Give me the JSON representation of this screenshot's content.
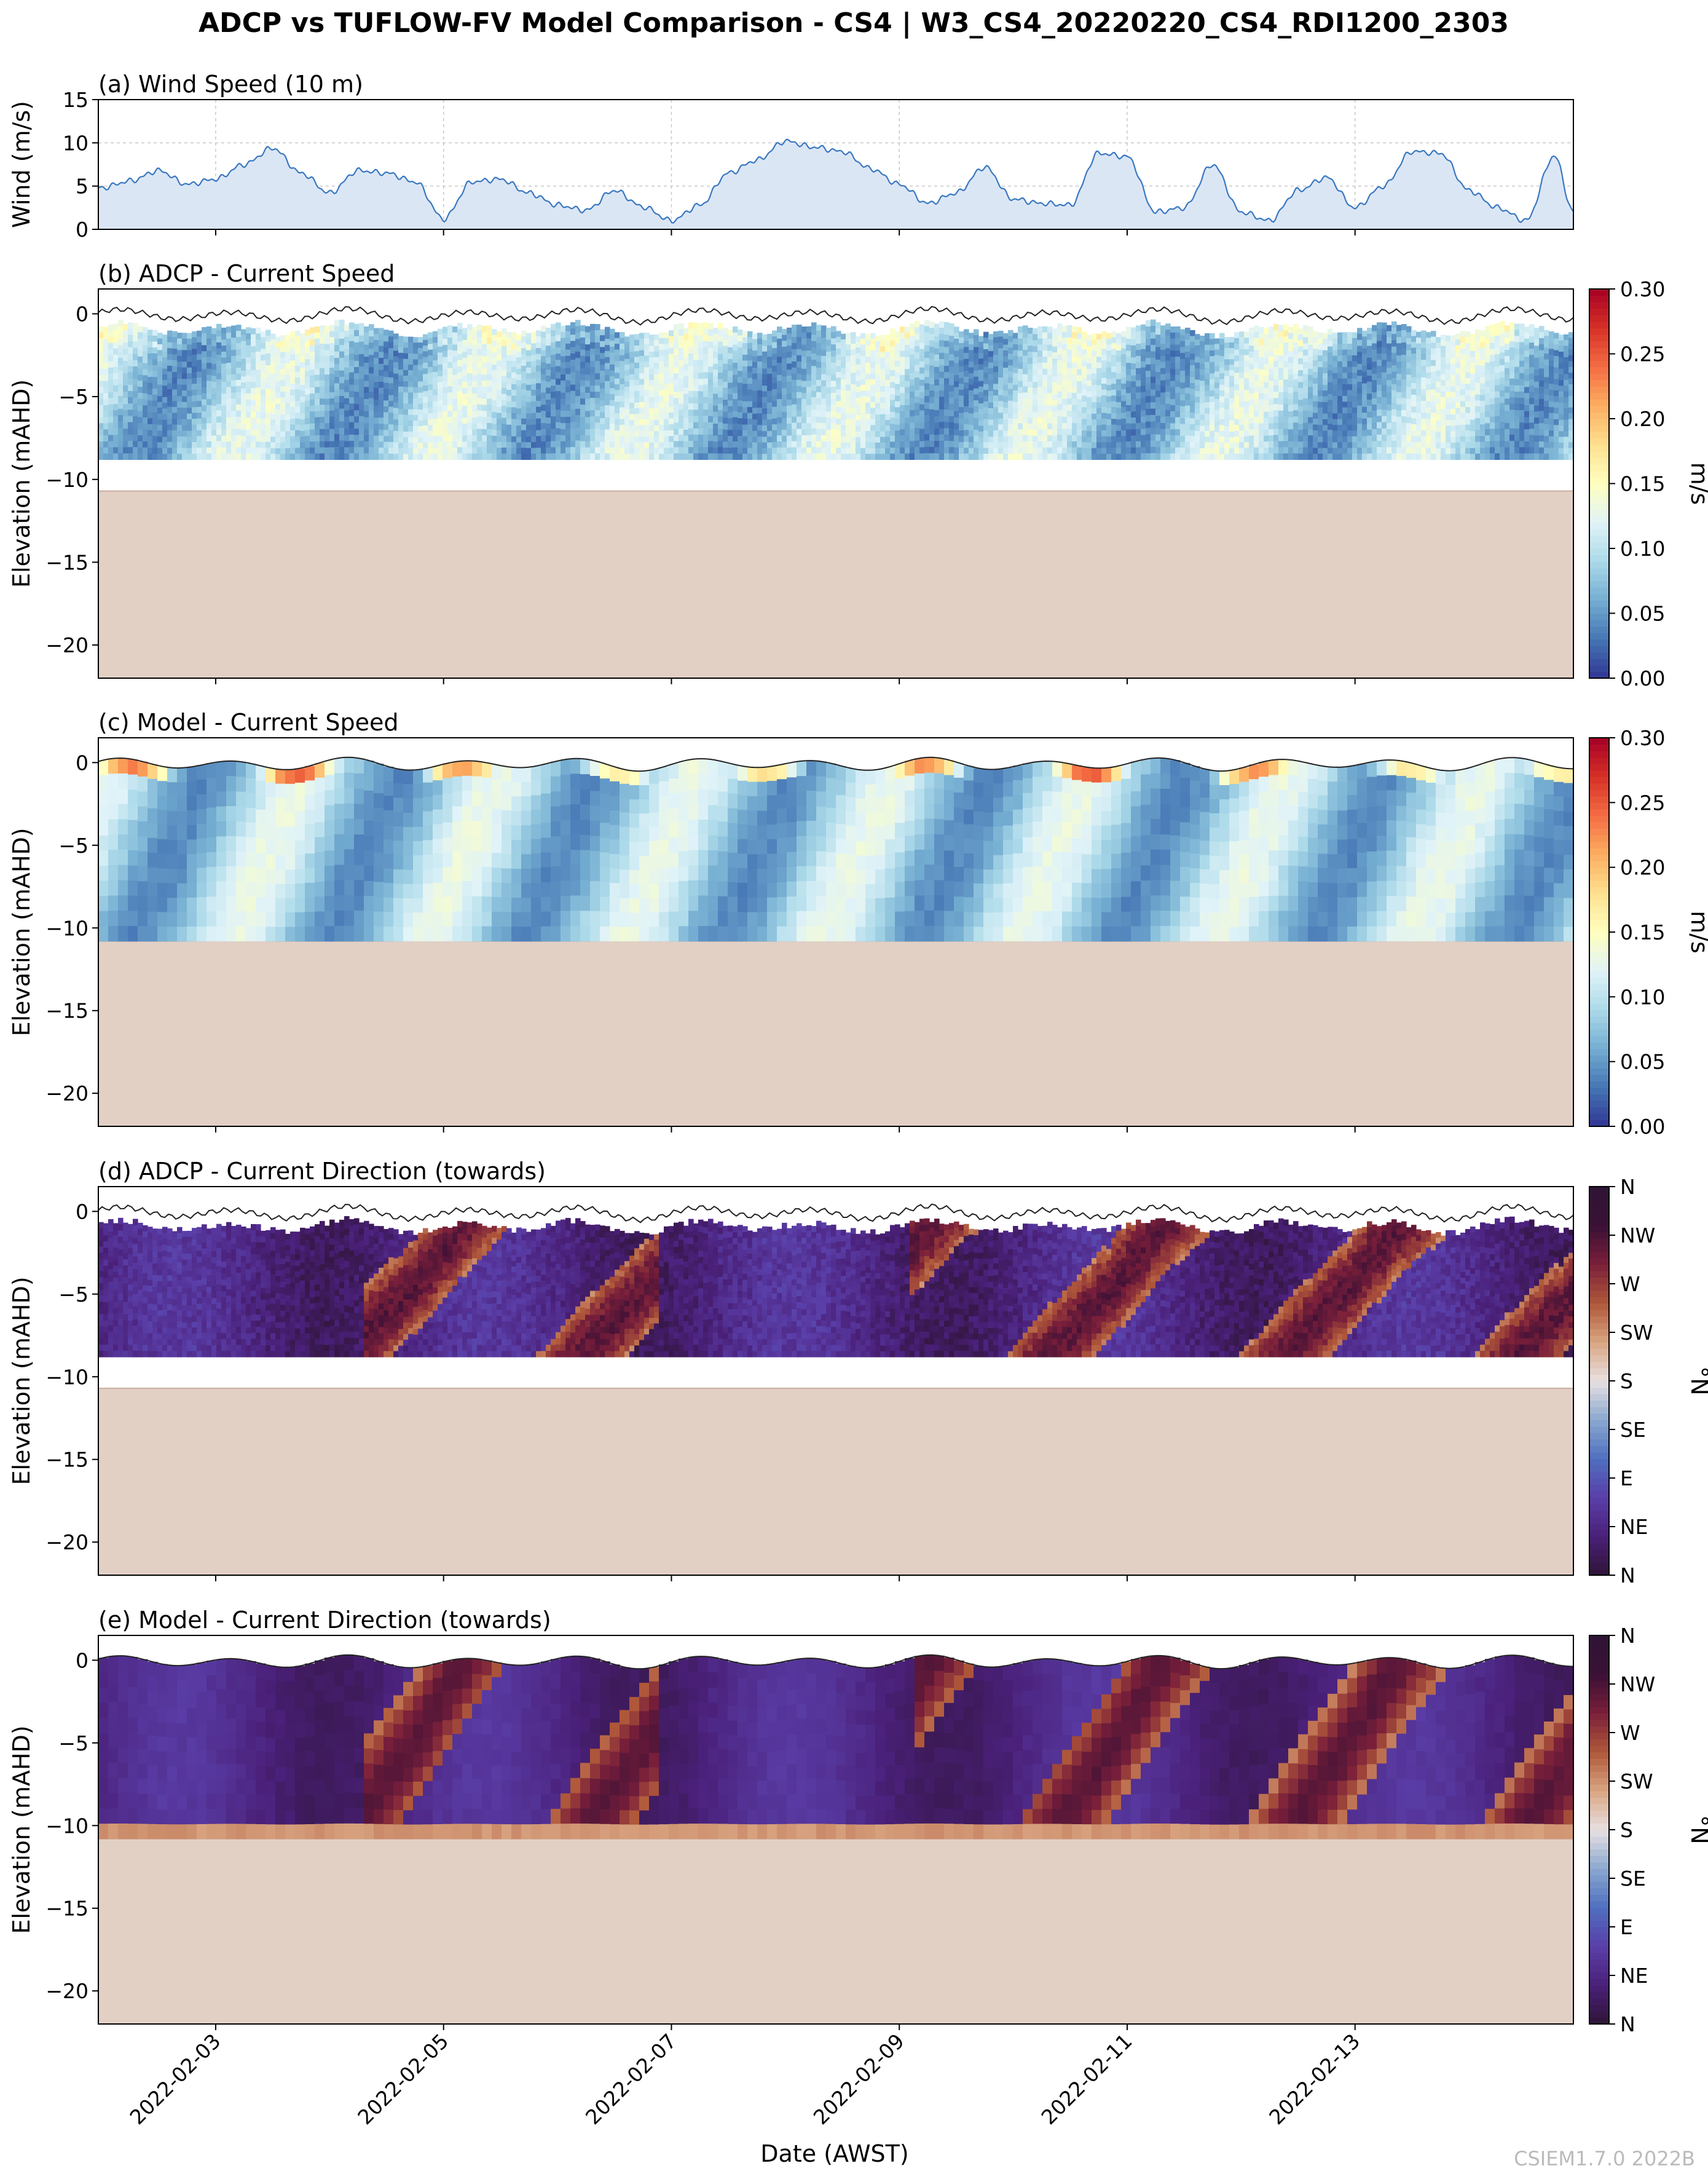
{
  "figure": {
    "title": "ADCP vs TUFLOW-FV Model Comparison - CS4 | W3_CS4_20220220_CS4_RDI1200_2303",
    "xlabel": "Date (AWST)",
    "watermark": "CSIEM1.7.0 2022B"
  },
  "colors": {
    "wind_line": "#3a78c0",
    "wind_fill": "#dbe6f5",
    "seabed": "#e2d0c5",
    "seabed_edge": "#c9ada0",
    "surface_line": "#222222",
    "grid": "#c8c8c8",
    "speed_cmap": [
      "#313695",
      "#4575b4",
      "#74add1",
      "#abd9e9",
      "#e0f3f8",
      "#ffffbf",
      "#fee090",
      "#fdae61",
      "#f46d43",
      "#d73027",
      "#a50026"
    ],
    "direction_cmap": [
      "#2f1436",
      "#4a2079",
      "#5a3ea8",
      "#4f6fbf",
      "#8aa8cf",
      "#e8e0e2",
      "#d9a582",
      "#b0583a",
      "#7a1f3a",
      "#3a1036",
      "#2f1436"
    ]
  },
  "chart_data": [
    {
      "id": "a",
      "type": "area",
      "title": "(a) Wind Speed (10 m)",
      "ylabel": "Wind (m/s)",
      "x_start": "2022-02-02",
      "x_end": "2022-02-14 22:00",
      "ylim": [
        0,
        15
      ],
      "yticks": [
        0,
        5,
        10,
        15
      ],
      "grid": true,
      "x": [
        "2022-02-02 00:00",
        "2022-02-02 06:00",
        "2022-02-02 12:00",
        "2022-02-02 18:00",
        "2022-02-03 00:00",
        "2022-02-03 06:00",
        "2022-02-03 12:00",
        "2022-02-03 18:00",
        "2022-02-04 00:00",
        "2022-02-04 06:00",
        "2022-02-04 12:00",
        "2022-02-04 18:00",
        "2022-02-05 00:00",
        "2022-02-05 06:00",
        "2022-02-05 12:00",
        "2022-02-05 18:00",
        "2022-02-06 00:00",
        "2022-02-06 06:00",
        "2022-02-06 12:00",
        "2022-02-06 18:00",
        "2022-02-07 00:00",
        "2022-02-07 06:00",
        "2022-02-07 12:00",
        "2022-02-07 18:00",
        "2022-02-08 00:00",
        "2022-02-08 06:00",
        "2022-02-08 12:00",
        "2022-02-08 18:00",
        "2022-02-09 00:00",
        "2022-02-09 06:00",
        "2022-02-09 12:00",
        "2022-02-09 18:00",
        "2022-02-10 00:00",
        "2022-02-10 06:00",
        "2022-02-10 12:00",
        "2022-02-10 18:00",
        "2022-02-11 00:00",
        "2022-02-11 06:00",
        "2022-02-11 12:00",
        "2022-02-11 18:00",
        "2022-02-12 00:00",
        "2022-02-12 06:00",
        "2022-02-12 12:00",
        "2022-02-12 18:00",
        "2022-02-13 00:00",
        "2022-02-13 06:00",
        "2022-02-13 12:00",
        "2022-02-13 18:00",
        "2022-02-14 00:00",
        "2022-02-14 06:00",
        "2022-02-14 12:00",
        "2022-02-14 18:00",
        "2022-02-14 22:00"
      ],
      "values": [
        4.8,
        5.6,
        6.8,
        5.2,
        5.8,
        7.5,
        9.4,
        6.5,
        4.2,
        6.8,
        6.5,
        5.5,
        1.2,
        5.5,
        5.8,
        4.2,
        2.8,
        2.2,
        4.5,
        2.6,
        1.0,
        2.8,
        6.5,
        8.0,
        10.2,
        9.5,
        9.0,
        7.0,
        5.2,
        3.0,
        4.2,
        7.2,
        3.5,
        3.0,
        2.8,
        8.8,
        8.4,
        2.0,
        2.5,
        7.5,
        2.0,
        1.0,
        4.5,
        6.0,
        2.5,
        5.0,
        9.0,
        8.8,
        4.5,
        2.5,
        1.0,
        8.5,
        2.0
      ]
    },
    {
      "id": "b",
      "type": "heatmap",
      "title": "(b) ADCP - Current Speed",
      "ylabel": "Elevation (mAHD)",
      "ylim": [
        -22,
        1.5
      ],
      "yticks": [
        -20,
        -15,
        -10,
        -5,
        0
      ],
      "colorbar_label": "m/s",
      "colorbar_range": [
        0.0,
        0.3
      ],
      "colorbar_ticks": [
        "0.00",
        "0.05",
        "0.10",
        "0.15",
        "0.20",
        "0.25",
        "0.30"
      ],
      "data_bottom_elevation": -8.8,
      "seabed_elevation": -10.7
    },
    {
      "id": "c",
      "type": "heatmap",
      "title": "(c) Model - Current Speed",
      "ylabel": "Elevation (mAHD)",
      "ylim": [
        -22,
        1.5
      ],
      "yticks": [
        -20,
        -15,
        -10,
        -5,
        0
      ],
      "colorbar_label": "m/s",
      "colorbar_range": [
        0.0,
        0.3
      ],
      "colorbar_ticks": [
        "0.00",
        "0.05",
        "0.10",
        "0.15",
        "0.20",
        "0.25",
        "0.30"
      ],
      "data_bottom_elevation": -10.8,
      "seabed_elevation": -10.8
    },
    {
      "id": "d",
      "type": "heatmap",
      "title": "(d) ADCP - Current Direction (towards)",
      "ylabel": "Elevation (mAHD)",
      "ylim": [
        -22,
        1.5
      ],
      "yticks": [
        -20,
        -15,
        -10,
        -5,
        0
      ],
      "colorbar_label": "°N",
      "colorbar_range": [
        0,
        360
      ],
      "colorbar_ticks": [
        "N",
        "NE",
        "E",
        "SE",
        "S",
        "SW",
        "W",
        "NW",
        "N"
      ],
      "data_bottom_elevation": -8.8,
      "seabed_elevation": -10.7
    },
    {
      "id": "e",
      "type": "heatmap",
      "title": "(e) Model - Current Direction (towards)",
      "ylabel": "Elevation (mAHD)",
      "ylim": [
        -22,
        1.5
      ],
      "yticks": [
        -20,
        -15,
        -10,
        -5,
        0
      ],
      "colorbar_label": "°N",
      "colorbar_range": [
        0,
        360
      ],
      "colorbar_ticks": [
        "N",
        "NE",
        "E",
        "SE",
        "S",
        "SW",
        "W",
        "NW",
        "N"
      ],
      "data_bottom_elevation": -10.8,
      "seabed_elevation": -10.8
    }
  ],
  "x_axis": {
    "tick_labels": [
      "2022-02-03",
      "2022-02-05",
      "2022-02-07",
      "2022-02-09",
      "2022-02-11",
      "2022-02-13"
    ],
    "tick_dates": [
      "2022-02-03",
      "2022-02-05",
      "2022-02-07",
      "2022-02-09",
      "2022-02-11",
      "2022-02-13"
    ]
  }
}
